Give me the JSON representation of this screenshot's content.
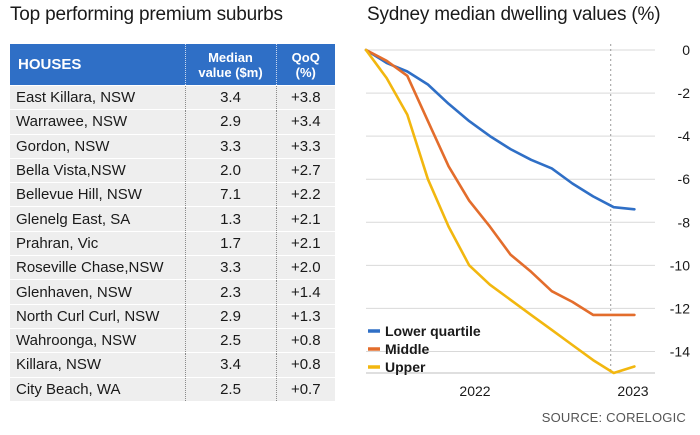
{
  "left_title": "Top performing premium suburbs",
  "right_title": "Sydney median dwelling values (%)",
  "source": "SOURCE: CORELOGIC",
  "table": {
    "headers": {
      "col1": "HOUSES",
      "col2_line1": "Median",
      "col2_line2": "value ($m)",
      "col3_line1": "QoQ",
      "col3_line2": "(%)"
    },
    "rows": [
      {
        "name": "East Killara, NSW",
        "value": "3.4",
        "qoq": "+3.8"
      },
      {
        "name": "Warrawee, NSW",
        "value": "2.9",
        "qoq": "+3.4"
      },
      {
        "name": "Gordon, NSW",
        "value": "3.3",
        "qoq": "+3.3"
      },
      {
        "name": "Bella Vista,NSW",
        "value": "2.0",
        "qoq": "+2.7"
      },
      {
        "name": "Bellevue Hill, NSW",
        "value": "7.1",
        "qoq": "+2.2"
      },
      {
        "name": "Glenelg East, SA",
        "value": "1.3",
        "qoq": "+2.1"
      },
      {
        "name": "Prahran, Vic",
        "value": "1.7",
        "qoq": "+2.1"
      },
      {
        "name": "Roseville Chase,NSW",
        "value": "3.3",
        "qoq": "+2.0"
      },
      {
        "name": "Glenhaven, NSW",
        "value": "2.3",
        "qoq": "+1.4"
      },
      {
        "name": "North Curl Curl, NSW",
        "value": "2.9",
        "qoq": "+1.3"
      },
      {
        "name": "Wahroonga, NSW",
        "value": "2.5",
        "qoq": "+0.8"
      },
      {
        "name": "Killara, NSW",
        "value": "3.4",
        "qoq": "+0.8"
      },
      {
        "name": "City Beach, WA",
        "value": "2.5",
        "qoq": "+0.7"
      }
    ]
  },
  "chart_data": {
    "type": "line",
    "title": "Sydney median dwelling values (%)",
    "xlabel": "",
    "ylabel": "",
    "x_tick_labels": [
      "2022",
      "2023"
    ],
    "xlim": [
      0,
      14
    ],
    "ylim": [
      -15,
      0
    ],
    "yticks": [
      0,
      -2,
      -4,
      -6,
      -8,
      -10,
      -12,
      -14
    ],
    "y_axis_side": "right",
    "grid": "horizontal",
    "divider_at_x": 12,
    "legend_position": "bottom-left",
    "x": [
      0,
      1,
      2,
      3,
      4,
      5,
      6,
      7,
      8,
      9,
      10,
      11,
      12,
      13
    ],
    "series": [
      {
        "name": "Lower quartile",
        "color": "#2f6fc6",
        "values": [
          0,
          -0.6,
          -1.0,
          -1.6,
          -2.5,
          -3.3,
          -4.0,
          -4.6,
          -5.1,
          -5.5,
          -6.2,
          -6.8,
          -7.3,
          -7.4
        ]
      },
      {
        "name": "Middle",
        "color": "#e36d2c",
        "values": [
          0,
          -0.5,
          -1.2,
          -3.3,
          -5.4,
          -7.0,
          -8.2,
          -9.5,
          -10.3,
          -11.2,
          -11.7,
          -12.3,
          -12.3,
          -12.3
        ]
      },
      {
        "name": "Upper",
        "color": "#f2b70f",
        "values": [
          0,
          -1.3,
          -3.0,
          -6.0,
          -8.2,
          -10.0,
          -10.9,
          -11.6,
          -12.3,
          -13.0,
          -13.7,
          -14.4,
          -15.0,
          -14.7
        ]
      }
    ]
  }
}
